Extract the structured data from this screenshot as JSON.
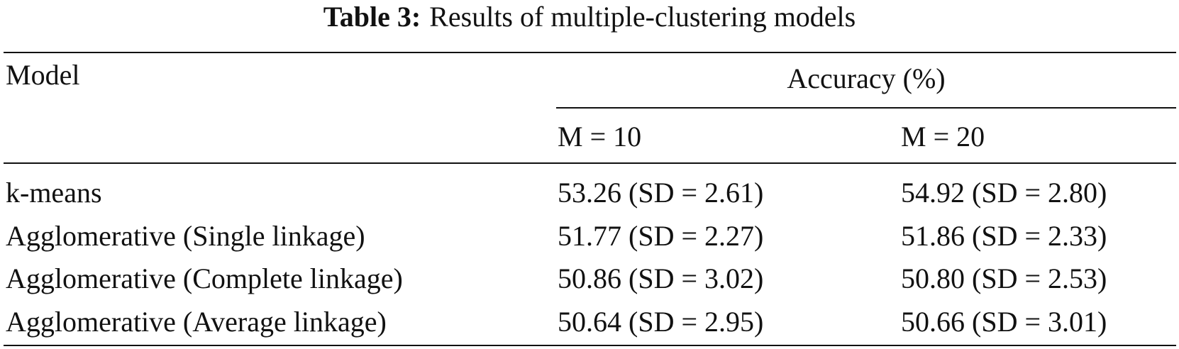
{
  "header": {
    "caption_label": "Table 3:",
    "caption": "Results of multiple-clustering models"
  },
  "table": {
    "columns": [
      "Model",
      "Accuracy (%)"
    ],
    "subcolumns": [
      "M = 10",
      "M = 20"
    ],
    "rows": [
      [
        "k-means",
        "53.26 (SD = 2.61)",
        "54.92 (SD = 2.80)"
      ],
      [
        "Agglomerative (Single linkage)",
        "51.77 (SD = 2.27)",
        "51.86 (SD = 2.33)"
      ],
      [
        "Agglomerative (Complete linkage)",
        "50.86 (SD = 3.02)",
        "50.80 (SD = 2.53)"
      ],
      [
        "Agglomerative (Average linkage)",
        "50.64 (SD = 2.95)",
        "50.66 (SD = 3.01)"
      ]
    ]
  }
}
